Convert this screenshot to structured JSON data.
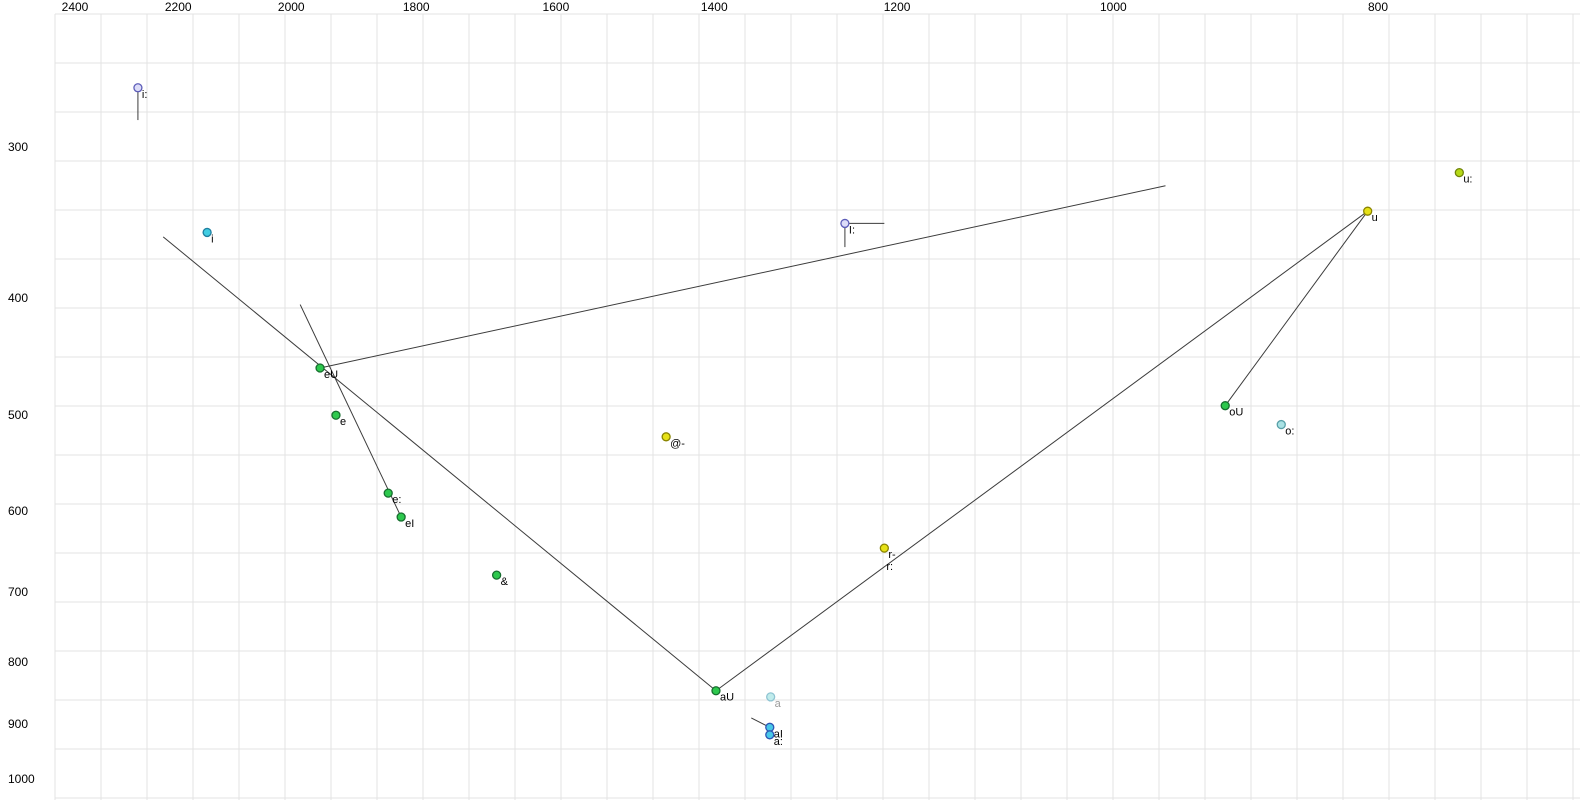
{
  "chart_data": {
    "type": "scatter",
    "title": "",
    "description": "Vowel formant plot (F2 horizontal decreasing to the right, F1 vertical increasing downward), log-scaled axes, Hz",
    "x_axis": {
      "ticks": [
        2400,
        2200,
        2000,
        1800,
        1600,
        1400,
        1200,
        1000,
        800
      ],
      "scale": "log",
      "direction": "decreasing-right"
    },
    "y_axis": {
      "ticks": [
        300,
        400,
        500,
        600,
        700,
        800,
        900,
        1000
      ],
      "scale": "log",
      "direction": "increasing-down"
    },
    "grid": true,
    "legend_position": "none",
    "points": [
      {
        "label": "i:",
        "f2": 2276,
        "f1": 268,
        "fill": "#dcdcf8",
        "stroke": "#5c5cb8",
        "label_color": "#000000",
        "marker": true
      },
      {
        "label": "i",
        "f2": 2147,
        "f1": 353,
        "fill": "#41cde2",
        "stroke": "#1f7fa0",
        "label_color": "#000000",
        "marker": true
      },
      {
        "label": "I:",
        "f2": 1254,
        "f1": 347,
        "fill": "#dcdcf8",
        "stroke": "#5c5cb8",
        "label_color": "#000000",
        "marker": true
      },
      {
        "label": "u:",
        "f2": 747,
        "f1": 315,
        "fill": "#b5d916",
        "stroke": "#70840a",
        "label_color": "#000000",
        "marker": true
      },
      {
        "label": "u",
        "f2": 807,
        "f1": 339,
        "fill": "#e6e117",
        "stroke": "#8a8400",
        "label_color": "#000000",
        "marker": true
      },
      {
        "label": "eU",
        "f2": 1952,
        "f1": 457,
        "fill": "#2dc84d",
        "stroke": "#166e2e",
        "label_color": "#000000",
        "marker": true
      },
      {
        "label": "e",
        "f2": 1926,
        "f1": 500,
        "fill": "#2dc84d",
        "stroke": "#166e2e",
        "label_color": "#000000",
        "marker": true
      },
      {
        "label": "@-",
        "f2": 1458,
        "f1": 521,
        "fill": "#e6e117",
        "stroke": "#8a8400",
        "label_color": "#000000",
        "marker": true
      },
      {
        "label": "oU",
        "f2": 910,
        "f1": 491,
        "fill": "#2dc84d",
        "stroke": "#166e2e",
        "label_color": "#000000",
        "marker": true
      },
      {
        "label": "o:",
        "f2": 868,
        "f1": 509,
        "fill": "#a9e2e4",
        "stroke": "#58a0a8",
        "label_color": "#000000",
        "marker": true
      },
      {
        "label": "e:",
        "f2": 1843,
        "f1": 580,
        "fill": "#2dc84d",
        "stroke": "#166e2e",
        "label_color": "#000000",
        "marker": true
      },
      {
        "label": "eI",
        "f2": 1823,
        "f1": 607,
        "fill": "#2dc84d",
        "stroke": "#166e2e",
        "label_color": "#000000",
        "marker": true
      },
      {
        "label": "r-",
        "f2": 1213,
        "f1": 644,
        "fill": "#e6e117",
        "stroke": "#8a8400",
        "label_color": "#000000",
        "marker": true
      },
      {
        "label": "r:",
        "f2": 1215,
        "f1": 659,
        "fill": "#e6e117",
        "stroke": "#8a8400",
        "label_color": "#000000",
        "marker": false
      },
      {
        "label": "&",
        "f2": 1682,
        "f1": 678,
        "fill": "#2dc84d",
        "stroke": "#166e2e",
        "label_color": "#000000",
        "marker": true
      },
      {
        "label": "aU",
        "f2": 1398,
        "f1": 845,
        "fill": "#2dc84d",
        "stroke": "#166e2e",
        "label_color": "#000000",
        "marker": true
      },
      {
        "label": "a",
        "f2": 1335,
        "f1": 855,
        "fill": "#c0ecec",
        "stroke": "#8fc4d2",
        "label_color": "#9a9a9a",
        "marker": true
      },
      {
        "label": "aI",
        "f2": 1336,
        "f1": 906,
        "fill": "#49c8e8",
        "stroke": "#2d55b4",
        "label_color": "#000000",
        "marker": true
      },
      {
        "label": "a:",
        "f2": 1336,
        "f1": 919,
        "fill": "#49c8e8",
        "stroke": "#2d55b4",
        "label_color": "#000000",
        "marker": true
      }
    ],
    "segments": [
      {
        "name": "i-long-tick",
        "from": [
          2276,
          270
        ],
        "to": [
          2276,
          285
        ]
      },
      {
        "name": "I-long-tick-right",
        "from": [
          1254,
          347
        ],
        "to": [
          1213,
          347
        ]
      },
      {
        "name": "I-long-tick-down",
        "from": [
          1254,
          350
        ],
        "to": [
          1254,
          363
        ]
      },
      {
        "name": "front-diagonal",
        "from": [
          2228,
          356
        ],
        "to": [
          1398,
          845
        ]
      },
      {
        "name": "eI-trajectory",
        "from": [
          1985,
          405
        ],
        "to": [
          1823,
          607
        ]
      },
      {
        "name": "eU-trajectory",
        "from": [
          1952,
          457
        ],
        "to": [
          957,
          323
        ]
      },
      {
        "name": "u-aU-diagonal",
        "from": [
          807,
          339
        ],
        "to": [
          1398,
          845
        ]
      },
      {
        "name": "u-oU-trajectory",
        "from": [
          807,
          339
        ],
        "to": [
          910,
          491
        ]
      },
      {
        "name": "aI-tick",
        "from": [
          1357,
          890
        ],
        "to": [
          1336,
          906
        ]
      }
    ],
    "colors": {
      "background": "#ffffff",
      "grid": "#e3e3e3",
      "segment": "#3b3b3b",
      "tick_text": "#000000"
    }
  }
}
